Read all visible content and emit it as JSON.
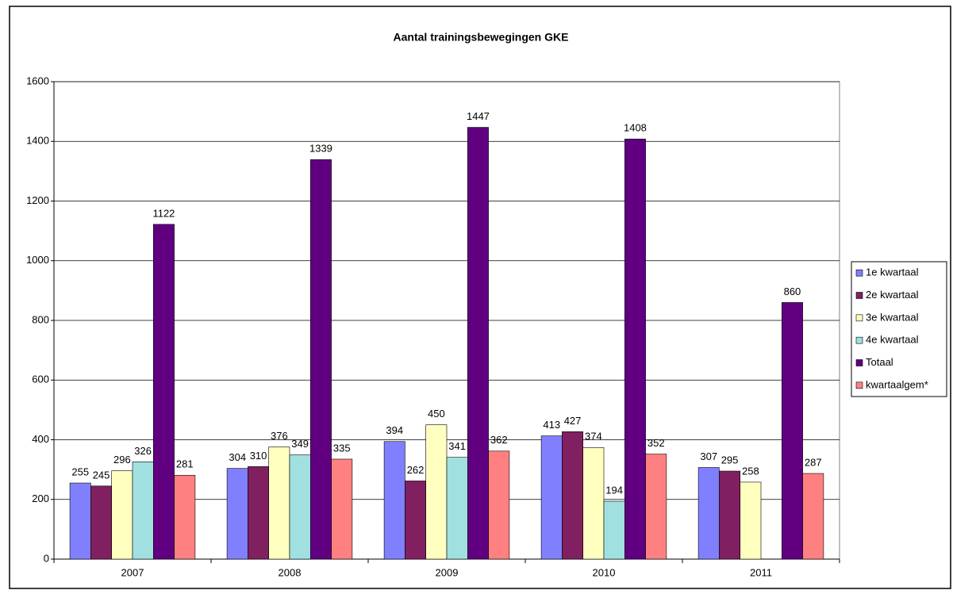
{
  "chart_data": {
    "type": "bar",
    "title": "Aantal trainingsbewegingen GKE",
    "categories": [
      "2007",
      "2008",
      "2009",
      "2010",
      "2011"
    ],
    "series": [
      {
        "name": "1e kwartaal",
        "color": "#8080ff",
        "values": [
          255,
          304,
          394,
          413,
          307
        ]
      },
      {
        "name": "2e kwartaal",
        "color": "#802060",
        "values": [
          245,
          310,
          262,
          427,
          295
        ]
      },
      {
        "name": "3e kwartaal",
        "color": "#ffffc0",
        "values": [
          296,
          376,
          450,
          374,
          258
        ]
      },
      {
        "name": "4e kwartaal",
        "color": "#a0e0e0",
        "values": [
          326,
          349,
          341,
          194,
          null
        ]
      },
      {
        "name": "Totaal",
        "color": "#600080",
        "values": [
          1122,
          1339,
          1447,
          1408,
          860
        ]
      },
      {
        "name": "kwartaalgem*",
        "color": "#ff8080",
        "values": [
          281,
          335,
          362,
          352,
          287
        ]
      }
    ],
    "ylim": [
      0,
      1600
    ],
    "yticks": [
      0,
      200,
      400,
      600,
      800,
      1000,
      1200,
      1400,
      1600
    ],
    "grid": true,
    "legend": "right"
  }
}
